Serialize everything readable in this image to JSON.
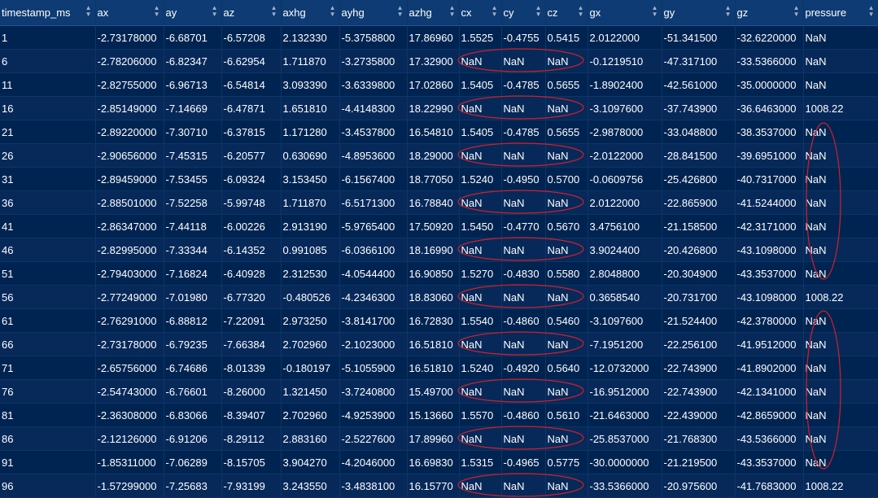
{
  "columns": [
    "timestamp_ms",
    "ax",
    "ay",
    "az",
    "axhg",
    "ayhg",
    "azhg",
    "cx",
    "cy",
    "cz",
    "gx",
    "gy",
    "gz",
    "pressure"
  ],
  "sort_icon": "sort-up-down-icon",
  "annotation_color": "#d0202a",
  "rows": [
    [
      "1",
      "-2.73178000",
      "-6.68701",
      "-6.57208",
      "2.132330",
      "-5.3758800",
      "17.86960",
      "1.5525",
      "-0.4755",
      "0.5415",
      "2.0122000",
      "-51.341500",
      "-32.6220000",
      "NaN"
    ],
    [
      "6",
      "-2.78206000",
      "-6.82347",
      "-6.62954",
      "1.711870",
      "-3.2735800",
      "17.32900",
      "NaN",
      "NaN",
      "NaN",
      "-0.1219510",
      "-47.317100",
      "-33.5366000",
      "NaN"
    ],
    [
      "11",
      "-2.82755000",
      "-6.96713",
      "-6.54814",
      "3.093390",
      "-3.6339800",
      "17.02860",
      "1.5405",
      "-0.4785",
      "0.5655",
      "-1.8902400",
      "-42.561000",
      "-35.0000000",
      "NaN"
    ],
    [
      "16",
      "-2.85149000",
      "-7.14669",
      "-6.47871",
      "1.651810",
      "-4.4148300",
      "18.22990",
      "NaN",
      "NaN",
      "NaN",
      "-3.1097600",
      "-37.743900",
      "-36.6463000",
      "1008.22"
    ],
    [
      "21",
      "-2.89220000",
      "-7.30710",
      "-6.37815",
      "1.171280",
      "-3.4537800",
      "16.54810",
      "1.5405",
      "-0.4785",
      "0.5655",
      "-2.9878000",
      "-33.048800",
      "-38.3537000",
      "NaN"
    ],
    [
      "26",
      "-2.90656000",
      "-7.45315",
      "-6.20577",
      "0.630690",
      "-4.8953600",
      "18.29000",
      "NaN",
      "NaN",
      "NaN",
      "-2.0122000",
      "-28.841500",
      "-39.6951000",
      "NaN"
    ],
    [
      "31",
      "-2.89459000",
      "-7.53455",
      "-6.09324",
      "3.153450",
      "-6.1567400",
      "18.77050",
      "1.5240",
      "-0.4950",
      "0.5700",
      "-0.0609756",
      "-25.426800",
      "-40.7317000",
      "NaN"
    ],
    [
      "36",
      "-2.88501000",
      "-7.52258",
      "-5.99748",
      "1.711870",
      "-6.5171300",
      "16.78840",
      "NaN",
      "NaN",
      "NaN",
      "2.0122000",
      "-22.865900",
      "-41.5244000",
      "NaN"
    ],
    [
      "41",
      "-2.86347000",
      "-7.44118",
      "-6.00226",
      "2.913190",
      "-5.9765400",
      "17.50920",
      "1.5450",
      "-0.4770",
      "0.5670",
      "3.4756100",
      "-21.158500",
      "-42.3171000",
      "NaN"
    ],
    [
      "46",
      "-2.82995000",
      "-7.33344",
      "-6.14352",
      "0.991085",
      "-6.0366100",
      "18.16990",
      "NaN",
      "NaN",
      "NaN",
      "3.9024400",
      "-20.426800",
      "-43.1098000",
      "NaN"
    ],
    [
      "51",
      "-2.79403000",
      "-7.16824",
      "-6.40928",
      "2.312530",
      "-4.0544400",
      "16.90850",
      "1.5270",
      "-0.4830",
      "0.5580",
      "2.8048800",
      "-20.304900",
      "-43.3537000",
      "NaN"
    ],
    [
      "56",
      "-2.77249000",
      "-7.01980",
      "-6.77320",
      "-0.480526",
      "-4.2346300",
      "18.83060",
      "NaN",
      "NaN",
      "NaN",
      "0.3658540",
      "-20.731700",
      "-43.1098000",
      "1008.22"
    ],
    [
      "61",
      "-2.76291000",
      "-6.88812",
      "-7.22091",
      "2.973250",
      "-3.8141700",
      "16.72830",
      "1.5540",
      "-0.4860",
      "0.5460",
      "-3.1097600",
      "-21.524400",
      "-42.3780000",
      "NaN"
    ],
    [
      "66",
      "-2.73178000",
      "-6.79235",
      "-7.66384",
      "2.702960",
      "-2.1023000",
      "16.51810",
      "NaN",
      "NaN",
      "NaN",
      "-7.1951200",
      "-22.256100",
      "-41.9512000",
      "NaN"
    ],
    [
      "71",
      "-2.65756000",
      "-6.74686",
      "-8.01339",
      "-0.180197",
      "-5.1055900",
      "16.51810",
      "1.5240",
      "-0.4920",
      "0.5640",
      "-12.0732000",
      "-22.743900",
      "-41.8902000",
      "NaN"
    ],
    [
      "76",
      "-2.54743000",
      "-6.76601",
      "-8.26000",
      "1.321450",
      "-3.7240800",
      "15.49700",
      "NaN",
      "NaN",
      "NaN",
      "-16.9512000",
      "-22.743900",
      "-42.1341000",
      "NaN"
    ],
    [
      "81",
      "-2.36308000",
      "-6.83066",
      "-8.39407",
      "2.702960",
      "-4.9253900",
      "15.13660",
      "1.5570",
      "-0.4860",
      "0.5610",
      "-21.6463000",
      "-22.439000",
      "-42.8659000",
      "NaN"
    ],
    [
      "86",
      "-2.12126000",
      "-6.91206",
      "-8.29112",
      "2.883160",
      "-2.5227600",
      "17.89960",
      "NaN",
      "NaN",
      "NaN",
      "-25.8537000",
      "-21.768300",
      "-43.5366000",
      "NaN"
    ],
    [
      "91",
      "-1.85311000",
      "-7.06289",
      "-8.15705",
      "3.904270",
      "-4.2046000",
      "16.69830",
      "1.5315",
      "-0.4965",
      "0.5775",
      "-30.0000000",
      "-21.219500",
      "-43.3537000",
      "NaN"
    ],
    [
      "96",
      "-1.57299000",
      "-7.25683",
      "-7.93199",
      "3.243550",
      "-3.4838100",
      "16.15770",
      "NaN",
      "NaN",
      "NaN",
      "-33.5366000",
      "-20.975600",
      "-41.7683000",
      "1008.22"
    ]
  ]
}
